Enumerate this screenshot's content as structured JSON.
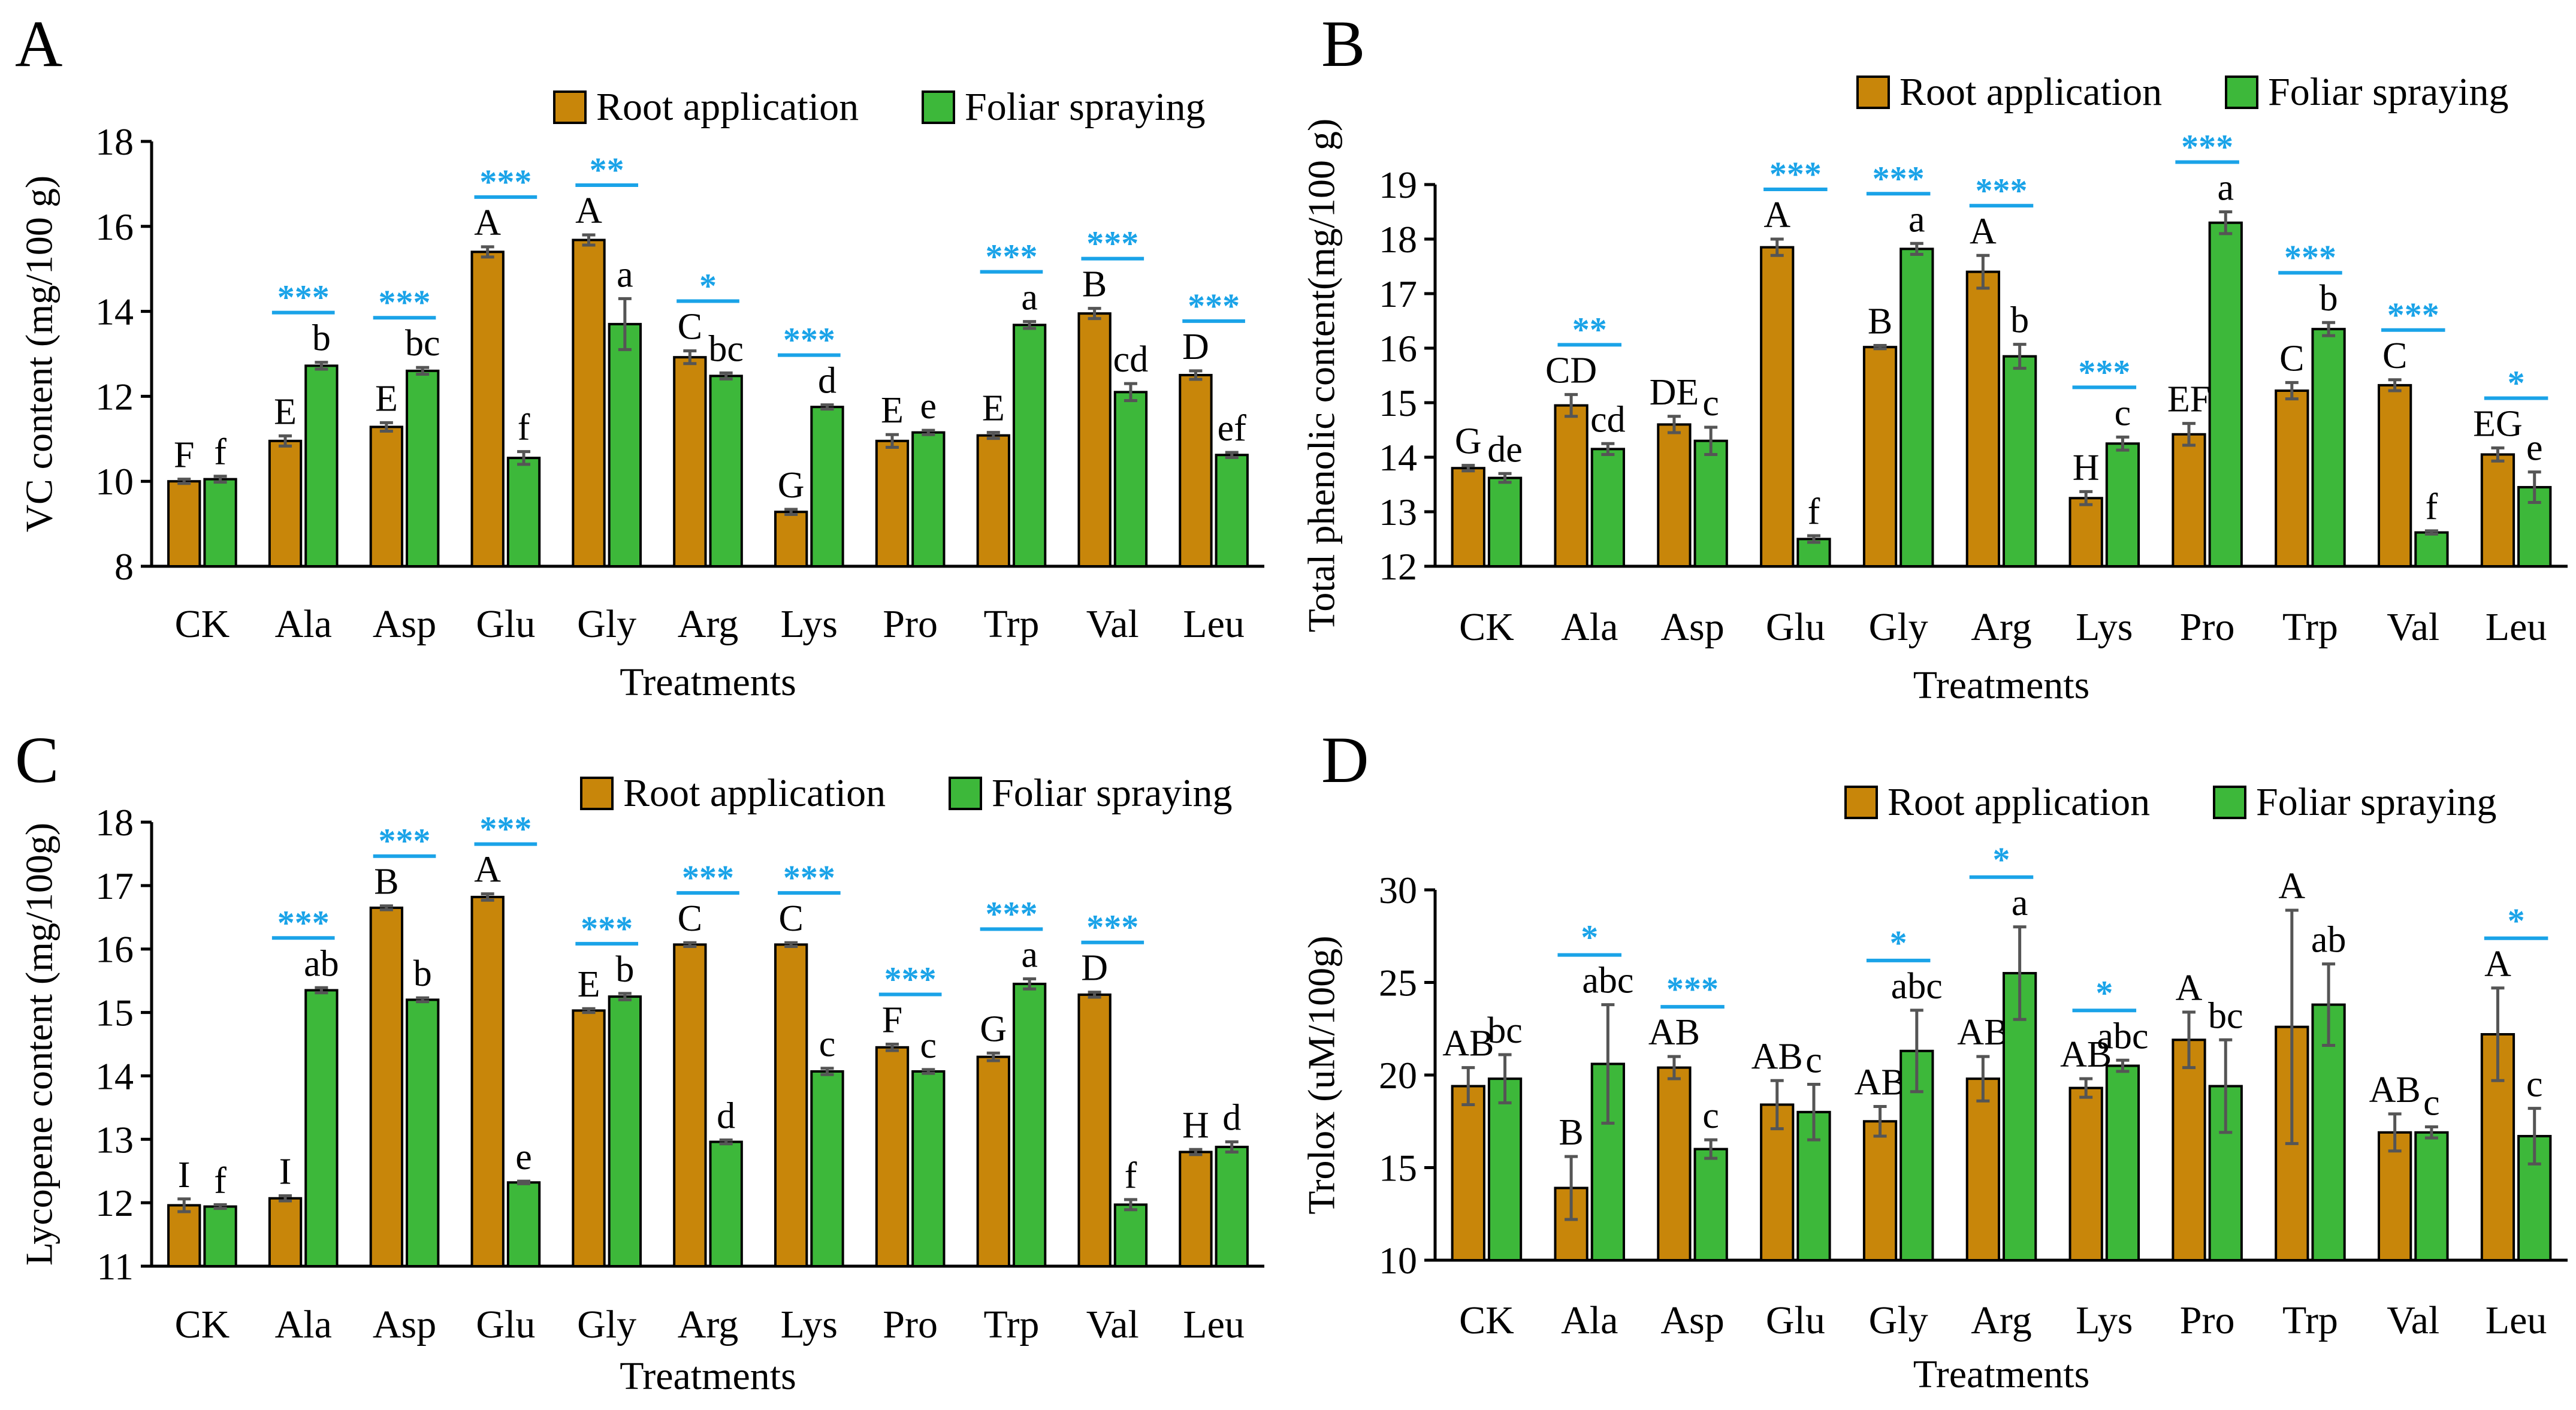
{
  "colors": {
    "root": "#C8860A",
    "foliar": "#3DB83A",
    "sig": "#1AA3E8",
    "axis": "#000000",
    "error": "#555555"
  },
  "legend": {
    "root": "Root application",
    "foliar": "Foliar spraying"
  },
  "chart_data": [
    {
      "panel": "A",
      "type": "bar",
      "title": "",
      "xlabel": "Treatments",
      "ylabel": "VC content (mg/100 g)",
      "ylim": [
        8,
        18
      ],
      "yticks": [
        8,
        10,
        12,
        14,
        16,
        18
      ],
      "legend_position": "top-right",
      "categories": [
        "CK",
        "Ala",
        "Asp",
        "Glu",
        "Gly",
        "Arg",
        "Lys",
        "Pro",
        "Trp",
        "Val",
        "Leu"
      ],
      "series": [
        {
          "name": "Root application",
          "values": [
            10.0,
            10.95,
            11.28,
            15.4,
            15.68,
            12.92,
            9.28,
            10.95,
            11.08,
            13.95,
            12.5
          ],
          "errors": [
            0.05,
            0.12,
            0.1,
            0.12,
            0.12,
            0.15,
            0.06,
            0.15,
            0.07,
            0.12,
            0.1
          ],
          "letters": [
            "F",
            "E",
            "E",
            "A",
            "A",
            "C",
            "G",
            "E",
            "E",
            "B",
            "D"
          ]
        },
        {
          "name": "Foliar spraying",
          "values": [
            10.05,
            12.72,
            12.6,
            10.55,
            13.7,
            12.48,
            11.75,
            11.15,
            13.68,
            12.1,
            10.62
          ],
          "errors": [
            0.07,
            0.08,
            0.08,
            0.15,
            0.6,
            0.07,
            0.05,
            0.05,
            0.08,
            0.2,
            0.06
          ],
          "letters": [
            "f",
            "b",
            "bc",
            "f",
            "a",
            "bc",
            "d",
            "e",
            "a",
            "cd",
            "ef"
          ]
        }
      ],
      "significance": [
        "",
        "***",
        "***",
        "***",
        "**",
        "*",
        "***",
        "",
        "***",
        "***",
        "***"
      ]
    },
    {
      "panel": "B",
      "type": "bar",
      "title": "",
      "xlabel": "Treatments",
      "ylabel": "Total phenolic content(mg/100 g)",
      "ylim": [
        12,
        19
      ],
      "yticks": [
        12,
        13,
        14,
        15,
        16,
        17,
        18,
        19
      ],
      "legend_position": "top-right",
      "categories": [
        "CK",
        "Ala",
        "Asp",
        "Glu",
        "Gly",
        "Arg",
        "Lys",
        "Pro",
        "Trp",
        "Val",
        "Leu"
      ],
      "series": [
        {
          "name": "Root application",
          "values": [
            13.8,
            14.95,
            14.6,
            17.85,
            16.02,
            17.4,
            13.25,
            14.42,
            15.22,
            15.32,
            14.05
          ],
          "errors": [
            0.05,
            0.2,
            0.15,
            0.15,
            0.03,
            0.3,
            0.12,
            0.2,
            0.15,
            0.1,
            0.12
          ],
          "letters": [
            "G",
            "CD",
            "DE",
            "A",
            "B",
            "A",
            "H",
            "EF",
            "C",
            "C",
            "EG"
          ]
        },
        {
          "name": "Foliar spraying",
          "values": [
            13.62,
            14.15,
            14.3,
            12.5,
            17.82,
            15.85,
            14.25,
            18.3,
            16.35,
            12.62,
            13.45
          ],
          "errors": [
            0.08,
            0.1,
            0.25,
            0.06,
            0.1,
            0.22,
            0.12,
            0.2,
            0.12,
            0.03,
            0.28
          ],
          "letters": [
            "de",
            "cd",
            "c",
            "f",
            "a",
            "b",
            "c",
            "a",
            "b",
            "f",
            "e"
          ]
        }
      ],
      "significance": [
        "",
        "**",
        "",
        "***",
        "***",
        "***",
        "***",
        "***",
        "***",
        "***",
        "*"
      ]
    },
    {
      "panel": "C",
      "type": "bar",
      "title": "",
      "xlabel": "Treatments",
      "ylabel": "Lycopene content (mg/100g)",
      "ylim": [
        11,
        18
      ],
      "yticks": [
        11,
        12,
        13,
        14,
        15,
        16,
        17,
        18
      ],
      "legend_position": "top-right",
      "categories": [
        "CK",
        "Ala",
        "Asp",
        "Glu",
        "Gly",
        "Arg",
        "Lys",
        "Pro",
        "Trp",
        "Val",
        "Leu"
      ],
      "series": [
        {
          "name": "Root application",
          "values": [
            11.96,
            12.07,
            16.65,
            16.82,
            15.03,
            16.07,
            16.07,
            14.45,
            14.3,
            15.28,
            12.8
          ],
          "errors": [
            0.1,
            0.04,
            0.03,
            0.05,
            0.03,
            0.03,
            0.03,
            0.05,
            0.06,
            0.04,
            0.04
          ],
          "letters": [
            "I",
            "I",
            "B",
            "A",
            "E",
            "C",
            "C",
            "F",
            "G",
            "D",
            "H"
          ]
        },
        {
          "name": "Foliar spraying",
          "values": [
            11.94,
            15.35,
            15.2,
            12.32,
            15.25,
            12.96,
            14.07,
            14.07,
            15.45,
            11.97,
            12.88
          ],
          "errors": [
            0.03,
            0.04,
            0.03,
            0.02,
            0.05,
            0.03,
            0.05,
            0.03,
            0.08,
            0.08,
            0.08
          ],
          "letters": [
            "f",
            "ab",
            "b",
            "e",
            "b",
            "d",
            "c",
            "c",
            "a",
            "f",
            "d"
          ]
        }
      ],
      "significance": [
        "",
        "***",
        "***",
        "***",
        "***",
        "***",
        "***",
        "***",
        "***",
        "***",
        ""
      ]
    },
    {
      "panel": "D",
      "type": "bar",
      "title": "",
      "xlabel": "Treatments",
      "ylabel": "Trolox (uM/100g)",
      "ylim": [
        10,
        30
      ],
      "yticks": [
        10,
        15,
        20,
        25,
        30
      ],
      "legend_position": "top-right",
      "categories": [
        "CK",
        "Ala",
        "Asp",
        "Glu",
        "Gly",
        "Arg",
        "Lys",
        "Pro",
        "Trp",
        "Val",
        "Leu"
      ],
      "series": [
        {
          "name": "Root application",
          "values": [
            19.4,
            13.9,
            20.4,
            18.4,
            17.5,
            19.8,
            19.3,
            21.9,
            22.6,
            16.9,
            22.2
          ],
          "errors": [
            1.0,
            1.7,
            0.6,
            1.3,
            0.8,
            1.2,
            0.5,
            1.5,
            6.3,
            1.0,
            2.5
          ],
          "letters": [
            "AB",
            "B",
            "AB",
            "AB",
            "AB",
            "AB",
            "AB",
            "A",
            "A",
            "AB",
            "A"
          ]
        },
        {
          "name": "Foliar spraying",
          "values": [
            19.8,
            20.6,
            16.0,
            18.0,
            21.3,
            25.5,
            20.5,
            19.4,
            23.8,
            16.9,
            16.7
          ],
          "errors": [
            1.3,
            3.2,
            0.5,
            1.5,
            2.2,
            2.5,
            0.3,
            2.5,
            2.2,
            0.3,
            1.5
          ],
          "letters": [
            "bc",
            "abc",
            "c",
            "c",
            "abc",
            "a",
            "abc",
            "bc",
            "ab",
            "c",
            "c"
          ]
        }
      ],
      "significance": [
        "",
        "*",
        "***",
        "",
        "*",
        "*",
        "*",
        "",
        "",
        "",
        "*"
      ]
    }
  ]
}
